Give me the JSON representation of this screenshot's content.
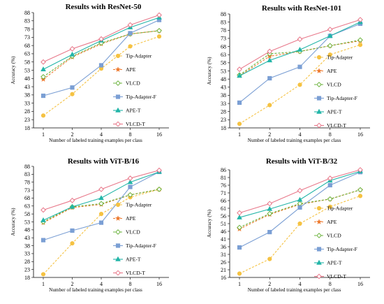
{
  "figure": {
    "background": "#ffffff"
  },
  "series_styles": [
    {
      "name": "Tip-Adapter",
      "color": "#F5C242",
      "dash": "3,2",
      "marker": "circle"
    },
    {
      "name": "APE",
      "color": "#EE7B30",
      "dash": "3,2",
      "marker": "star"
    },
    {
      "name": "VLCD",
      "color": "#6BB33C",
      "dash": "3,2",
      "marker": "diamond-open"
    },
    {
      "name": "Tip-Adapter-F",
      "color": "#7B9FD4",
      "dash": "",
      "marker": "square"
    },
    {
      "name": "APE-T",
      "color": "#23B5A8",
      "dash": "",
      "marker": "triangle"
    },
    {
      "name": "VLCD-T",
      "color": "#E8788A",
      "dash": "",
      "marker": "diamond-open"
    }
  ],
  "chart_data": [
    {
      "type": "line",
      "title": "Results with ResNet-50",
      "xlabel": "Number of labeled training examples per class",
      "ylabel": "Accuracy  (%)",
      "x": [
        "1",
        "2",
        "4",
        "8",
        "16"
      ],
      "ylim": [
        18,
        88
      ],
      "yticks": [
        18,
        23,
        28,
        33,
        38,
        43,
        48,
        53,
        58,
        63,
        68,
        73,
        78,
        83,
        88
      ],
      "legend": "right",
      "series": [
        {
          "name": "Tip-Adapter",
          "values": [
            25.5,
            38.5,
            54.0,
            67.5,
            73.5
          ]
        },
        {
          "name": "APE",
          "values": [
            47.5,
            61.0,
            69.0,
            75.0,
            77.0
          ]
        },
        {
          "name": "VLCD",
          "values": [
            49.0,
            61.5,
            69.5,
            75.0,
            77.0
          ]
        },
        {
          "name": "Tip-Adapter-F",
          "values": [
            37.5,
            42.5,
            56.0,
            75.5,
            83.5
          ]
        },
        {
          "name": "APE-T",
          "values": [
            53.5,
            62.5,
            71.0,
            79.0,
            85.0
          ]
        },
        {
          "name": "VLCD-T",
          "values": [
            58.0,
            66.0,
            72.0,
            80.5,
            86.5
          ]
        }
      ]
    },
    {
      "type": "line",
      "title": "Results with ResNet-101",
      "xlabel": "Number of labeled training examples per class",
      "ylabel": "Accuracy  (%)",
      "x": [
        "1",
        "2",
        "4",
        "8",
        "16"
      ],
      "ylim": [
        18,
        88
      ],
      "yticks": [
        18,
        23,
        28,
        33,
        38,
        43,
        48,
        53,
        58,
        63,
        68,
        73,
        78,
        83,
        88
      ],
      "legend": "right",
      "series": [
        {
          "name": "Tip-Adapter",
          "values": [
            20.5,
            32.0,
            44.5,
            63.0,
            69.0
          ]
        },
        {
          "name": "APE",
          "values": [
            50.0,
            62.0,
            65.0,
            68.5,
            71.5
          ]
        },
        {
          "name": "VLCD",
          "values": [
            50.5,
            63.5,
            65.0,
            68.5,
            72.0
          ]
        },
        {
          "name": "Tip-Adapter-F",
          "values": [
            33.5,
            48.5,
            55.5,
            74.5,
            82.0
          ]
        },
        {
          "name": "APE-T",
          "values": [
            50.0,
            59.5,
            66.0,
            74.5,
            83.0
          ]
        },
        {
          "name": "VLCD-T",
          "values": [
            54.0,
            65.0,
            72.5,
            78.5,
            84.5
          ]
        }
      ]
    },
    {
      "type": "line",
      "title": "Results with ViT-B/16",
      "xlabel": "Number of labeled training examples per class",
      "ylabel": "Accuracy  (%)",
      "x": [
        "1",
        "2",
        "4",
        "8",
        "16"
      ],
      "ylim": [
        18,
        88
      ],
      "yticks": [
        18,
        23,
        28,
        33,
        38,
        43,
        48,
        53,
        58,
        63,
        68,
        73,
        78,
        83,
        88
      ],
      "legend": "right",
      "series": [
        {
          "name": "Tip-Adapter",
          "values": [
            20.0,
            39.5,
            58.0,
            68.5,
            73.5
          ]
        },
        {
          "name": "APE",
          "values": [
            52.5,
            62.0,
            64.0,
            70.0,
            73.5
          ]
        },
        {
          "name": "VLCD",
          "values": [
            53.0,
            62.5,
            64.5,
            70.0,
            73.5
          ]
        },
        {
          "name": "Tip-Adapter-F",
          "values": [
            41.5,
            47.5,
            52.5,
            75.0,
            84.5
          ]
        },
        {
          "name": "APE-T",
          "values": [
            54.0,
            62.5,
            68.0,
            78.0,
            84.5
          ]
        },
        {
          "name": "VLCD-T",
          "values": [
            60.5,
            66.5,
            73.5,
            80.5,
            85.5
          ]
        }
      ]
    },
    {
      "type": "line",
      "title": "Results with ViT-B/32",
      "xlabel": "Number of labeled training examples per class",
      "ylabel": "Accuracy  (%)",
      "x": [
        "1",
        "2",
        "4",
        "8",
        "16"
      ],
      "ylim": [
        16,
        86
      ],
      "yticks": [
        16,
        21,
        26,
        31,
        36,
        41,
        46,
        51,
        56,
        61,
        66,
        71,
        76,
        81,
        86
      ],
      "legend": "right",
      "series": [
        {
          "name": "Tip-Adapter",
          "values": [
            18.5,
            28.0,
            51.0,
            62.0,
            69.0
          ]
        },
        {
          "name": "APE",
          "values": [
            47.5,
            57.0,
            63.5,
            67.0,
            73.0
          ]
        },
        {
          "name": "VLCD",
          "values": [
            48.5,
            57.5,
            64.0,
            67.0,
            73.0
          ]
        },
        {
          "name": "Tip-Adapter-F",
          "values": [
            35.5,
            45.5,
            61.5,
            76.0,
            84.5
          ]
        },
        {
          "name": "APE-T",
          "values": [
            55.0,
            60.5,
            66.5,
            79.0,
            85.0
          ]
        },
        {
          "name": "VLCD-T",
          "values": [
            58.0,
            64.0,
            72.5,
            80.5,
            86.0
          ]
        }
      ]
    }
  ]
}
